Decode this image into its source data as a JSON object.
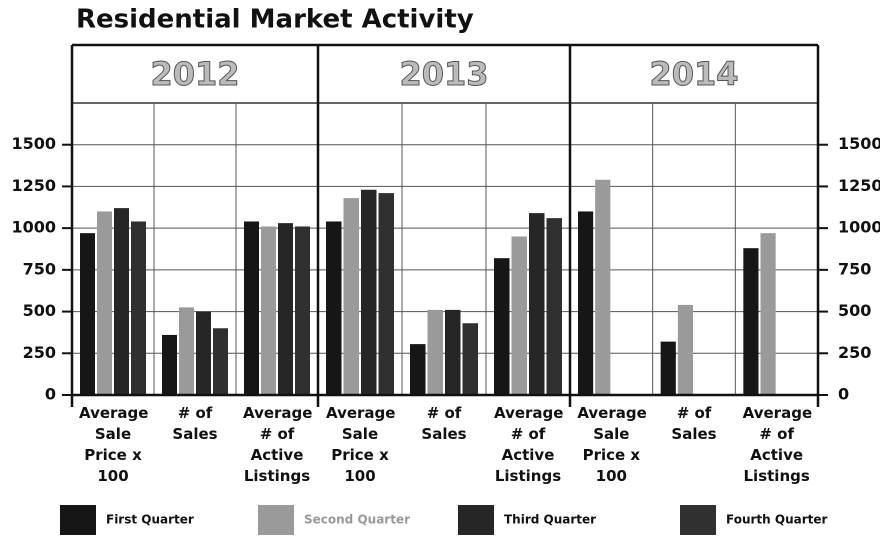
{
  "title": "Residential Market Activity",
  "chart_data": [
    {
      "type": "bar",
      "title": "2012",
      "categories": [
        "Average Sale Price x 100",
        "# of Sales",
        "Average # of Active Listings"
      ],
      "series": [
        {
          "name": "First Quarter",
          "color": "#161616",
          "values": [
            970,
            360,
            1040
          ]
        },
        {
          "name": "Second Quarter",
          "color": "#9a9a9a",
          "values": [
            1100,
            525,
            1010
          ]
        },
        {
          "name": "Third Quarter",
          "color": "#262626",
          "values": [
            1120,
            500,
            1030
          ]
        },
        {
          "name": "Fourth Quarter",
          "color": "#303030",
          "values": [
            1040,
            400,
            1010
          ]
        }
      ],
      "ylim": [
        0,
        1750
      ],
      "yticks": [
        0,
        250,
        500,
        750,
        1000,
        1250,
        1500
      ],
      "grid": true
    },
    {
      "type": "bar",
      "title": "2013",
      "categories": [
        "Average Sale Price x 100",
        "# of Sales",
        "Average # of Active Listings"
      ],
      "series": [
        {
          "name": "First Quarter",
          "color": "#161616",
          "values": [
            1040,
            305,
            820
          ]
        },
        {
          "name": "Second Quarter",
          "color": "#9a9a9a",
          "values": [
            1180,
            510,
            950
          ]
        },
        {
          "name": "Third Quarter",
          "color": "#262626",
          "values": [
            1230,
            510,
            1090
          ]
        },
        {
          "name": "Fourth Quarter",
          "color": "#303030",
          "values": [
            1210,
            430,
            1060
          ]
        }
      ],
      "ylim": [
        0,
        1750
      ],
      "yticks": [
        0,
        250,
        500,
        750,
        1000,
        1250,
        1500
      ],
      "grid": true
    },
    {
      "type": "bar",
      "title": "2014",
      "categories": [
        "Average Sale Price x 100",
        "# of Sales",
        "Average # of Active Listings"
      ],
      "series": [
        {
          "name": "First Quarter",
          "color": "#161616",
          "values": [
            1100,
            320,
            880
          ]
        },
        {
          "name": "Second Quarter",
          "color": "#9a9a9a",
          "values": [
            1290,
            540,
            970
          ]
        },
        {
          "name": "Third Quarter",
          "color": "#262626",
          "values": [
            null,
            null,
            null
          ]
        },
        {
          "name": "Fourth Quarter",
          "color": "#303030",
          "values": [
            null,
            null,
            null
          ]
        }
      ],
      "ylim": [
        0,
        1750
      ],
      "yticks": [
        0,
        250,
        500,
        750,
        1000,
        1250,
        1500
      ],
      "grid": true
    }
  ]
}
